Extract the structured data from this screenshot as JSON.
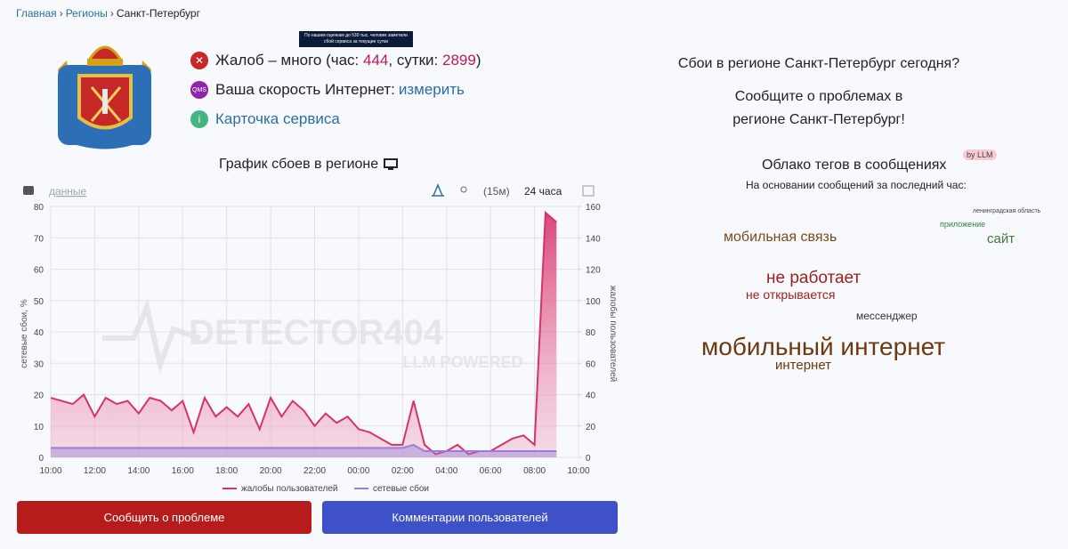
{
  "breadcrumb": [
    "Главная",
    "Регионы",
    "Санкт-Петербург"
  ],
  "tooltip": "По нашим оценкам до 530 тыс. человек заметили сбой сервиса за текущие сутки",
  "status": {
    "complaints_text": "Жалоб – много (час: ",
    "hour": 444,
    "day_text": ", сутки: ",
    "day": 2899,
    "close_text": ")",
    "speed_text": "Ваша скорость Интернет: ",
    "speed_link": "измерить",
    "qms": "QMS",
    "card_link": "Карточка сервиса"
  },
  "chart_data": {
    "type": "line",
    "title": "График сбоев в регионе",
    "toolbar": [
      "данные",
      "(15м)",
      "24 часа"
    ],
    "watermark": [
      "DETECTOR404",
      "LLM POWERED"
    ],
    "ylabel": "сетевые сбои, %",
    "y2label": "жалобы пользователей",
    "categories": [
      "10:00",
      null,
      null,
      null,
      "12:00",
      null,
      null,
      null,
      "14:00",
      null,
      null,
      null,
      "16:00",
      null,
      null,
      null,
      "18:00",
      null,
      null,
      null,
      "20:00",
      null,
      null,
      null,
      "22:00",
      null,
      null,
      null,
      "00:00",
      null,
      null,
      null,
      "02:00",
      null,
      null,
      null,
      "04:00",
      null,
      null,
      null,
      "06:00",
      null,
      null,
      null,
      "08:00",
      null,
      null,
      null,
      "10:00"
    ],
    "series": [
      {
        "name": "жалобы пользователей",
        "color": "#d6336c",
        "axis": "y2",
        "values": [
          38,
          36,
          34,
          40,
          26,
          38,
          34,
          36,
          28,
          38,
          36,
          30,
          36,
          16,
          38,
          26,
          32,
          26,
          34,
          18,
          38,
          26,
          36,
          30,
          20,
          28,
          22,
          26,
          18,
          16,
          12,
          8,
          8,
          36,
          8,
          2,
          4,
          8,
          2,
          4,
          4,
          8,
          12,
          14,
          8,
          156,
          150,
          null,
          null
        ]
      },
      {
        "name": "сетевые сбои",
        "color": "#9b7fd4",
        "values": [
          3,
          3,
          3,
          3,
          3,
          3,
          3,
          3,
          3,
          3,
          3,
          3,
          3,
          3,
          3,
          3,
          3,
          3,
          3,
          3,
          3,
          3,
          3,
          3,
          3,
          3,
          3,
          3,
          3,
          3,
          3,
          3,
          3,
          4,
          2,
          2,
          2,
          2,
          2,
          2,
          2,
          2,
          2,
          2,
          2,
          2,
          2,
          null,
          null
        ]
      }
    ],
    "ylim": [
      0,
      80
    ],
    "yticks": [
      0,
      10,
      20,
      30,
      40,
      50,
      60,
      70,
      80
    ],
    "y2lim": [
      0,
      160
    ],
    "y2ticks": [
      0,
      20,
      40,
      60,
      80,
      100,
      120,
      140,
      160
    ],
    "grid": true,
    "legend": "bottom"
  },
  "buttons": [
    "Сообщить о проблеме",
    "Комментарии пользователей"
  ],
  "right": {
    "question": "Сбои в регионе Санкт-Петербург сегодня?",
    "report_lines": [
      "Сообщите о проблемах в",
      "регионе Санкт-Петербург!"
    ],
    "cloud_title": "Облако тегов в сообщениях",
    "badge": "by LLM",
    "cloud_subtitle": "На основании сообщений за последний час:",
    "tags": [
      "ленинградская область",
      "приложение",
      "сайт",
      "мобильная связь",
      "не работает",
      "не открывается",
      "мессенджер",
      "мобильный интернет",
      "интернет"
    ]
  }
}
